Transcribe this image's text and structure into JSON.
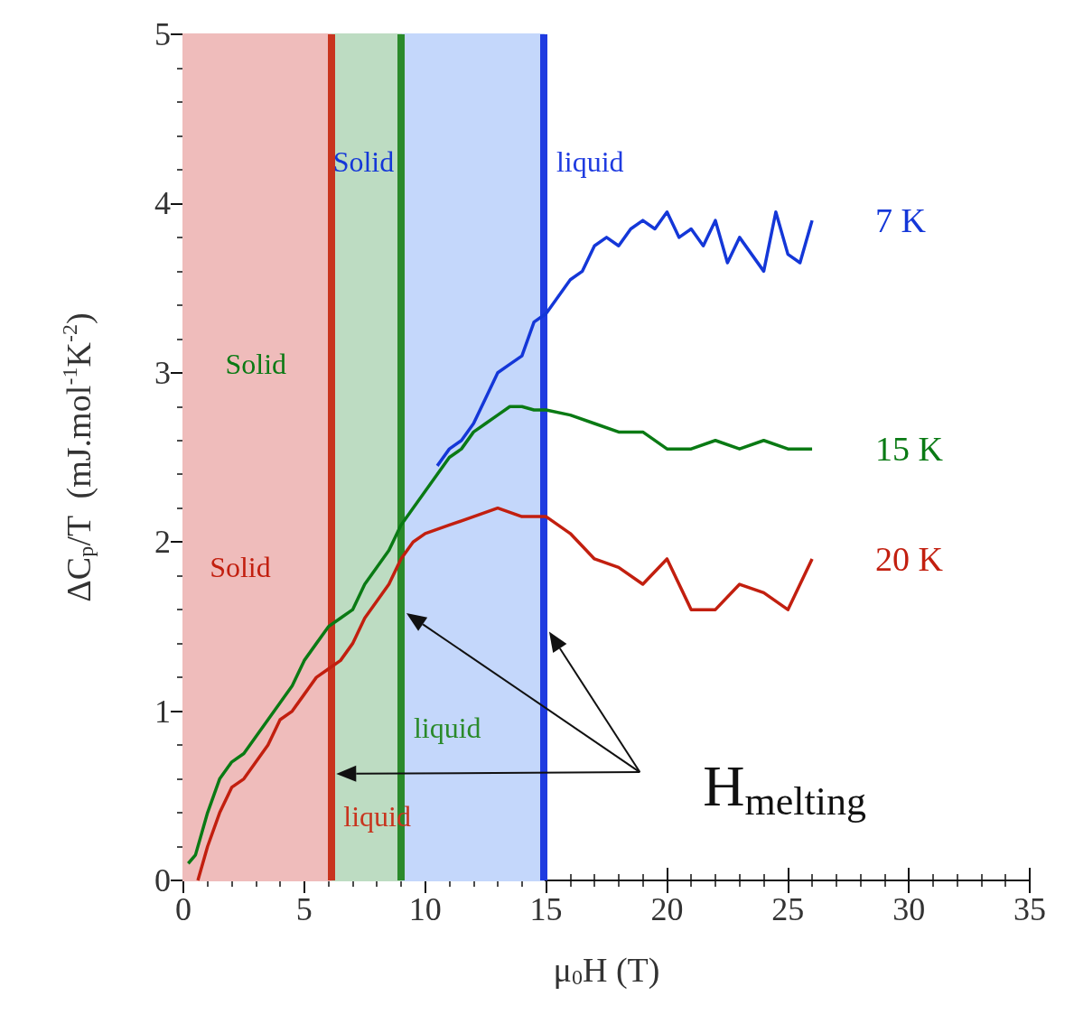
{
  "chart_data": {
    "type": "line",
    "xlabel": "μ$_{0}$H (T)",
    "ylabel": "ΔC$_{p}$/T  (mJ.mol$^{-1}$K$^{-2}$)",
    "xlim": [
      0,
      35
    ],
    "xticks": [
      0,
      5,
      10,
      15,
      20,
      25,
      30,
      35
    ],
    "ylim": [
      0,
      5
    ],
    "yticks": [
      0,
      1,
      2,
      3,
      4,
      5
    ],
    "grid": false,
    "legend": false,
    "marker": "none",
    "line_style": "solid",
    "series": [
      {
        "name": "7 K",
        "color": "#1437d8",
        "x": [
          10.5,
          11,
          11.5,
          12,
          12.5,
          13,
          13.5,
          14,
          14.5,
          15,
          15.5,
          16,
          16.5,
          17,
          17.5,
          18,
          18.5,
          19,
          19.5,
          20,
          20.5,
          21,
          21.5,
          22,
          22.5,
          23,
          23.5,
          24,
          24.5,
          25,
          25.5,
          26
        ],
        "values": [
          2.45,
          2.55,
          2.6,
          2.7,
          2.85,
          3.0,
          3.05,
          3.1,
          3.3,
          3.35,
          3.45,
          3.55,
          3.6,
          3.75,
          3.8,
          3.75,
          3.85,
          3.9,
          3.85,
          3.95,
          3.8,
          3.85,
          3.75,
          3.9,
          3.65,
          3.8,
          3.7,
          3.6,
          3.95,
          3.7,
          3.65,
          3.9
        ]
      },
      {
        "name": "15 K",
        "color": "#0a7a14",
        "x": [
          0.2,
          0.5,
          1,
          1.5,
          2,
          2.5,
          3,
          3.5,
          4,
          4.5,
          5,
          5.5,
          6,
          6.5,
          7,
          7.5,
          8,
          8.5,
          9,
          9.5,
          10,
          10.5,
          11,
          11.5,
          12,
          12.5,
          13,
          13.5,
          14,
          14.5,
          15,
          16,
          17,
          18,
          19,
          20,
          21,
          22,
          23,
          24,
          25,
          26
        ],
        "values": [
          0.1,
          0.15,
          0.4,
          0.6,
          0.7,
          0.75,
          0.85,
          0.95,
          1.05,
          1.15,
          1.3,
          1.4,
          1.5,
          1.55,
          1.6,
          1.75,
          1.85,
          1.95,
          2.1,
          2.2,
          2.3,
          2.4,
          2.5,
          2.55,
          2.65,
          2.7,
          2.75,
          2.8,
          2.8,
          2.78,
          2.78,
          2.75,
          2.7,
          2.65,
          2.65,
          2.55,
          2.55,
          2.6,
          2.55,
          2.6,
          2.55,
          2.55
        ]
      },
      {
        "name": "20 K",
        "color": "#c21f0f",
        "x": [
          0.6,
          1,
          1.5,
          2,
          2.5,
          3,
          3.5,
          4,
          4.5,
          5,
          5.5,
          6,
          6.5,
          7,
          7.5,
          8,
          8.5,
          9,
          9.5,
          10,
          11,
          12,
          13,
          14,
          15,
          16,
          17,
          18,
          19,
          20,
          21,
          22,
          23,
          24,
          25,
          26
        ],
        "values": [
          0,
          0.2,
          0.4,
          0.55,
          0.6,
          0.7,
          0.8,
          0.95,
          1.0,
          1.1,
          1.2,
          1.25,
          1.3,
          1.4,
          1.55,
          1.65,
          1.75,
          1.9,
          2.0,
          2.05,
          2.1,
          2.15,
          2.2,
          2.15,
          2.15,
          2.05,
          1.9,
          1.85,
          1.75,
          1.9,
          1.6,
          1.6,
          1.75,
          1.7,
          1.6,
          1.9
        ]
      }
    ],
    "bands": [
      {
        "axis": "x",
        "from": 0,
        "to": 14.9,
        "label": "Solid",
        "color": "#c4d7fb"
      },
      {
        "axis": "x",
        "from": 0,
        "to": 9,
        "label": "Solid",
        "color": "#bddcc2"
      },
      {
        "axis": "x",
        "from": 0,
        "to": 6.1,
        "label": "Solid",
        "color": "#efbcbb"
      }
    ],
    "ref_lines": [
      {
        "axis": "x",
        "value": 6.1,
        "label": "liquid",
        "color": "#c8341e"
      },
      {
        "axis": "x",
        "value": 9,
        "label": "liquid",
        "color": "#2a8a2a"
      },
      {
        "axis": "x",
        "value": 14.9,
        "label": "liquid",
        "color": "#1f3be0"
      }
    ],
    "annotations": [
      "H$_{melting}$"
    ]
  }
}
